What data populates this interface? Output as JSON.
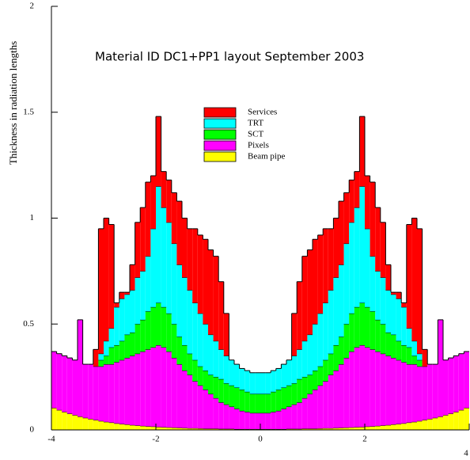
{
  "chart_data": {
    "type": "stacked-histogram",
    "title": "Material ID DC1+PP1 layout September 2003",
    "y_label": "Thickness in radiation lengths",
    "bins": [
      -4,
      -3.9,
      -3.8,
      -3.7,
      -3.6,
      -3.5,
      -3.4,
      -3.3,
      -3.2,
      -3.1,
      -3,
      -2.9,
      -2.8,
      -2.7,
      -2.6,
      -2.5,
      -2.4,
      -2.3,
      -2.2,
      -2.1,
      -2,
      -1.9,
      -1.8,
      -1.7,
      -1.6,
      -1.5,
      -1.4,
      -1.3,
      -1.2,
      -1.1,
      -1,
      -0.9,
      -0.8,
      -0.7,
      -0.6,
      -0.5,
      -0.4,
      -0.3,
      -0.2,
      -0.1,
      0,
      0.1,
      0.2,
      0.3,
      0.4,
      0.5,
      0.6,
      0.7,
      0.8,
      0.9,
      1,
      1.1,
      1.2,
      1.3,
      1.4,
      1.5,
      1.6,
      1.7,
      1.8,
      1.9,
      2,
      2.1,
      2.2,
      2.3,
      2.4,
      2.5,
      2.6,
      2.7,
      2.8,
      2.9,
      3,
      3.1,
      3.2,
      3.3,
      3.4,
      3.5,
      3.6,
      3.7,
      3.8,
      3.9,
      4
    ],
    "series": [
      {
        "name": "Beam pipe",
        "color": "#ffff00",
        "values": [
          0.104,
          0.094,
          0.085,
          0.077,
          0.07,
          0.063,
          0.057,
          0.052,
          0.047,
          0.042,
          0.038,
          0.035,
          0.031,
          0.028,
          0.026,
          0.023,
          0.021,
          0.019,
          0.017,
          0.016,
          0.014,
          0.013,
          0.012,
          0.011,
          0.01,
          0.009,
          0.008,
          0.008,
          0.007,
          0.006,
          0.006,
          0.006,
          0.005,
          0.005,
          0.005,
          0.004,
          0.004,
          0.004,
          0.004,
          0.004,
          0.004,
          0.004,
          0.004,
          0.004,
          0.004,
          0.005,
          0.005,
          0.005,
          0.006,
          0.006,
          0.006,
          0.007,
          0.008,
          0.008,
          0.009,
          0.01,
          0.011,
          0.012,
          0.013,
          0.014,
          0.016,
          0.017,
          0.019,
          0.021,
          0.023,
          0.026,
          0.028,
          0.031,
          0.035,
          0.038,
          0.042,
          0.047,
          0.052,
          0.057,
          0.063,
          0.07,
          0.077,
          0.085,
          0.094,
          0.104
        ]
      },
      {
        "name": "Pixels",
        "color": "#ff00ff",
        "values": [
          0.266,
          0.266,
          0.265,
          0.263,
          0.26,
          0.457,
          0.253,
          0.258,
          0.253,
          0.258,
          0.272,
          0.275,
          0.289,
          0.302,
          0.314,
          0.327,
          0.339,
          0.351,
          0.363,
          0.374,
          0.386,
          0.377,
          0.358,
          0.329,
          0.3,
          0.271,
          0.252,
          0.222,
          0.203,
          0.184,
          0.164,
          0.144,
          0.125,
          0.115,
          0.105,
          0.096,
          0.086,
          0.081,
          0.076,
          0.076,
          0.076,
          0.076,
          0.081,
          0.086,
          0.096,
          0.105,
          0.115,
          0.125,
          0.144,
          0.164,
          0.184,
          0.203,
          0.222,
          0.252,
          0.271,
          0.3,
          0.329,
          0.358,
          0.377,
          0.386,
          0.374,
          0.363,
          0.351,
          0.339,
          0.327,
          0.314,
          0.302,
          0.289,
          0.275,
          0.272,
          0.258,
          0.253,
          0.258,
          0.253,
          0.457,
          0.26,
          0.263,
          0.265,
          0.266,
          0.266
        ]
      },
      {
        "name": "SCT",
        "color": "#00ff00",
        "values": [
          0,
          0,
          0,
          0,
          0,
          0,
          0,
          0,
          0,
          0.03,
          0.04,
          0.08,
          0.08,
          0.09,
          0.11,
          0.11,
          0.14,
          0.15,
          0.18,
          0.19,
          0.2,
          0.19,
          0.18,
          0.16,
          0.13,
          0.12,
          0.1,
          0.1,
          0.09,
          0.09,
          0.09,
          0.1,
          0.11,
          0.1,
          0.1,
          0.1,
          0.1,
          0.095,
          0.09,
          0.09,
          0.09,
          0.09,
          0.095,
          0.1,
          0.1,
          0.1,
          0.1,
          0.11,
          0.1,
          0.09,
          0.09,
          0.09,
          0.1,
          0.1,
          0.12,
          0.13,
          0.16,
          0.18,
          0.19,
          0.2,
          0.19,
          0.18,
          0.15,
          0.14,
          0.11,
          0.11,
          0.09,
          0.08,
          0.08,
          0.04,
          0.03,
          0,
          0,
          0,
          0,
          0,
          0,
          0,
          0,
          0
        ]
      },
      {
        "name": "TRT",
        "color": "#00ffff",
        "values": [
          0,
          0,
          0,
          0,
          0,
          0,
          0,
          0,
          0,
          0.03,
          0.07,
          0.09,
          0.18,
          0.2,
          0.19,
          0.2,
          0.22,
          0.23,
          0.26,
          0.37,
          0.55,
          0.47,
          0.43,
          0.38,
          0.34,
          0.32,
          0.3,
          0.27,
          0.25,
          0.22,
          0.19,
          0.17,
          0.14,
          0.13,
          0.12,
          0.11,
          0.1,
          0.1,
          0.1,
          0.1,
          0.1,
          0.1,
          0.1,
          0.1,
          0.11,
          0.12,
          0.13,
          0.14,
          0.17,
          0.19,
          0.22,
          0.25,
          0.27,
          0.3,
          0.32,
          0.34,
          0.38,
          0.43,
          0.47,
          0.55,
          0.37,
          0.26,
          0.23,
          0.22,
          0.2,
          0.19,
          0.2,
          0.18,
          0.09,
          0.07,
          0.03,
          0,
          0,
          0,
          0,
          0,
          0,
          0,
          0,
          0
        ]
      },
      {
        "name": "Services",
        "color": "#ff0000",
        "values": [
          0,
          0,
          0,
          0,
          0,
          0,
          0,
          0,
          0.08,
          0.59,
          0.58,
          0.49,
          0.02,
          0.03,
          0.01,
          0.12,
          0.26,
          0.3,
          0.35,
          0.25,
          0.33,
          0.17,
          0.2,
          0.24,
          0.3,
          0.28,
          0.29,
          0.35,
          0.37,
          0.4,
          0.4,
          0.4,
          0.32,
          0.2,
          0,
          0,
          0,
          0,
          0,
          0,
          0,
          0,
          0,
          0,
          0,
          0,
          0.2,
          0.32,
          0.4,
          0.4,
          0.4,
          0.37,
          0.35,
          0.29,
          0.28,
          0.3,
          0.24,
          0.2,
          0.17,
          0.33,
          0.25,
          0.35,
          0.3,
          0.26,
          0.12,
          0.01,
          0.03,
          0.02,
          0.49,
          0.58,
          0.59,
          0.08,
          0,
          0,
          0,
          0,
          0,
          0,
          0,
          0
        ]
      }
    ],
    "xlim": [
      -4,
      4
    ],
    "ylim": [
      0,
      2
    ],
    "xticks": [
      -4,
      -2,
      0,
      2,
      4
    ],
    "yticks": [
      0,
      0.5,
      1,
      1.5,
      2
    ]
  }
}
